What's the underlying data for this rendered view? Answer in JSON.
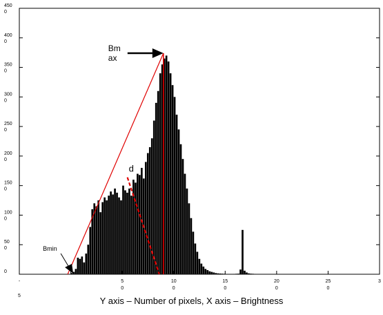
{
  "chart_data": {
    "type": "bar",
    "title": "",
    "xlabel": "",
    "ylabel": "",
    "caption": "Y axis – Number of pixels, X axis – Brightness",
    "xlim": [
      -50,
      300
    ],
    "ylim": [
      0,
      4500
    ],
    "grid": false,
    "y_ticks": [
      {
        "value": 0,
        "label": "0"
      },
      {
        "value": 500,
        "label": "50\n0"
      },
      {
        "value": 1000,
        "label": "100\n0"
      },
      {
        "value": 1500,
        "label": "150\n0"
      },
      {
        "value": 2000,
        "label": "200\n0"
      },
      {
        "value": 2500,
        "label": "250\n0"
      },
      {
        "value": 3000,
        "label": "300\n0"
      },
      {
        "value": 3500,
        "label": "350\n0"
      },
      {
        "value": 4000,
        "label": "400\n0"
      },
      {
        "value": 4500,
        "label": "450\n0"
      }
    ],
    "x_ticks": [
      {
        "value": -50,
        "label": "-\n5"
      },
      {
        "value": 0,
        "label": ""
      },
      {
        "value": 50,
        "label": "5\n0"
      },
      {
        "value": 100,
        "label": "10\n0"
      },
      {
        "value": 150,
        "label": "15\n0"
      },
      {
        "value": 200,
        "label": "20\n0"
      },
      {
        "value": 250,
        "label": "25\n0"
      },
      {
        "value": 300,
        "label": "3"
      }
    ],
    "histogram": {
      "x": [
        0,
        2,
        4,
        6,
        8,
        10,
        12,
        14,
        16,
        18,
        20,
        22,
        24,
        26,
        28,
        30,
        32,
        34,
        36,
        38,
        40,
        42,
        44,
        46,
        48,
        50,
        52,
        54,
        56,
        58,
        60,
        62,
        64,
        66,
        68,
        70,
        72,
        74,
        76,
        78,
        80,
        82,
        84,
        86,
        88,
        90,
        92,
        94,
        96,
        98,
        100,
        102,
        104,
        106,
        108,
        110,
        112,
        114,
        116,
        118,
        120,
        122,
        124,
        126,
        128,
        130,
        132,
        134,
        136,
        138,
        140,
        142,
        144,
        146,
        148,
        150,
        152,
        154,
        156,
        158,
        160,
        162,
        164,
        166,
        168,
        170,
        172,
        174,
        176,
        178,
        180,
        182,
        184,
        186,
        188,
        190,
        192,
        194,
        196,
        198,
        200
      ],
      "values": [
        20,
        40,
        90,
        280,
        260,
        300,
        200,
        350,
        500,
        800,
        1100,
        1200,
        1150,
        1250,
        1050,
        1220,
        1300,
        1250,
        1330,
        1400,
        1350,
        1450,
        1380,
        1300,
        1250,
        1500,
        1420,
        1380,
        1450,
        1330,
        1600,
        1550,
        1700,
        1680,
        1800,
        1620,
        1900,
        2050,
        2150,
        2300,
        2600,
        2900,
        3100,
        3400,
        3550,
        3650,
        3700,
        3600,
        3400,
        3200,
        3000,
        2700,
        2450,
        2200,
        1950,
        1700,
        1450,
        1200,
        950,
        720,
        520,
        380,
        260,
        180,
        130,
        90,
        70,
        50,
        40,
        30,
        20,
        15,
        12,
        10,
        8,
        6,
        5,
        4,
        5,
        6,
        8,
        10,
        80,
        750,
        60,
        30,
        15,
        10,
        8,
        6,
        5,
        4,
        4,
        3,
        3,
        3,
        2,
        2,
        2,
        2,
        2
      ]
    },
    "annotations": {
      "bmax": {
        "label": "Bm\nax",
        "x": 90,
        "y": 3740
      },
      "bmin": {
        "label": "Bmin",
        "x": -3,
        "y": 0
      },
      "d": {
        "label": "d"
      },
      "d_line": {
        "from": [
          55,
          1640
        ],
        "to": [
          86,
          0
        ]
      }
    }
  }
}
